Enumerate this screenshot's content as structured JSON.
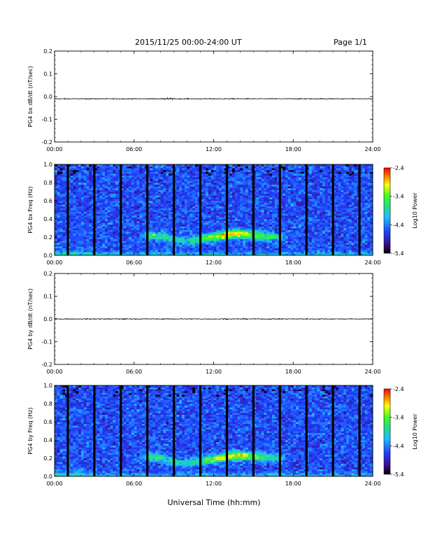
{
  "header": {
    "date_range": "2015/11/25  00:00-24:00 UT",
    "page": "Page 1/1"
  },
  "footer": {
    "xlabel": "Universal Time (hh:mm)"
  },
  "colors": {
    "trace": "#000000",
    "spectrogram_colormap": [
      "#000000",
      "#3a0a8a",
      "#2040ff",
      "#20c0ff",
      "#20e080",
      "#40ff20",
      "#ffff00",
      "#ff8000",
      "#ff0000"
    ]
  },
  "chart_data": [
    {
      "type": "line",
      "ylabel": "PG4 bx dB/dt (nT/sec)",
      "xlabel": "",
      "xlim": [
        "00:00",
        "24:00"
      ],
      "xticks": [
        "00:00",
        "06:00",
        "12:00",
        "18:00",
        "24:00"
      ],
      "ylim": [
        -0.2,
        0.2
      ],
      "yticks": [
        "0.2",
        "0.1",
        "0.0",
        "-0.1",
        "-0.2"
      ],
      "series": [
        {
          "x": [
            "00:00",
            "03:00",
            "06:00",
            "08:30",
            "09:00",
            "12:00",
            "15:00",
            "18:00",
            "21:00",
            "24:00"
          ],
          "y": [
            -0.01,
            -0.01,
            -0.01,
            -0.01,
            -0.01,
            -0.01,
            -0.01,
            -0.01,
            -0.01,
            -0.01
          ]
        }
      ]
    },
    {
      "type": "heatmap",
      "ylabel": "PG4 bx Freq (Hz)",
      "xlim": [
        "00:00",
        "24:00"
      ],
      "xticks": [
        "00:00",
        "06:00",
        "12:00",
        "18:00",
        "24:00"
      ],
      "ylim": [
        0.0,
        1.0
      ],
      "yticks": [
        "1.0",
        "0.8",
        "0.6",
        "0.4",
        "0.2",
        "0.0"
      ],
      "colorbar": {
        "label": "Log10 Power",
        "ticks": [
          "-2.4",
          "-3.4",
          "-4.4",
          "-5.4"
        ],
        "range": [
          -5.4,
          -2.4
        ]
      },
      "data_gaps_hours": [
        1.0,
        3.0,
        5.0,
        7.0,
        9.0,
        11.0,
        13.0,
        15.0,
        17.0,
        19.0,
        21.0,
        23.0
      ],
      "band_hours": [
        7,
        8,
        9,
        10,
        11,
        12,
        13,
        14,
        15,
        16,
        17
      ],
      "band_freq_hz": [
        0.22,
        0.22,
        0.18,
        0.16,
        0.18,
        0.2,
        0.23,
        0.24,
        0.22,
        0.21,
        0.2
      ],
      "band_peak_log10_power": [
        -3.8,
        -3.7,
        -3.9,
        -3.9,
        -3.7,
        -3.3,
        -2.8,
        -2.9,
        -3.4,
        -3.6,
        -3.9
      ],
      "background_log10_power": -4.6
    },
    {
      "type": "line",
      "ylabel": "PG4 by dB/dt (nT/sec)",
      "xlabel": "",
      "xlim": [
        "00:00",
        "24:00"
      ],
      "xticks": [
        "00:00",
        "06:00",
        "12:00",
        "18:00",
        "24:00"
      ],
      "ylim": [
        -0.2,
        0.2
      ],
      "yticks": [
        "0.2",
        "0.1",
        "0.0",
        "-0.1",
        "-0.2"
      ],
      "series": [
        {
          "x": [
            "00:00",
            "03:00",
            "06:00",
            "09:00",
            "12:00",
            "15:00",
            "18:00",
            "21:00",
            "24:00"
          ],
          "y": [
            0.0,
            0.0,
            0.0,
            0.0,
            0.0,
            0.0,
            0.0,
            0.0,
            0.0
          ]
        }
      ]
    },
    {
      "type": "heatmap",
      "ylabel": "PG4 by Freq (Hz)",
      "xlabel": "Universal Time (hh:mm)",
      "xlim": [
        "00:00",
        "24:00"
      ],
      "xticks": [
        "00:00",
        "06:00",
        "12:00",
        "18:00",
        "24:00"
      ],
      "ylim": [
        0.0,
        1.0
      ],
      "yticks": [
        "1.0",
        "0.8",
        "0.6",
        "0.4",
        "0.2",
        "0.0"
      ],
      "colorbar": {
        "label": "Log10 Power",
        "ticks": [
          "-2.4",
          "-3.4",
          "-4.4",
          "-5.4"
        ],
        "range": [
          -5.4,
          -2.4
        ]
      },
      "data_gaps_hours": [
        1.0,
        3.0,
        5.0,
        7.0,
        9.0,
        11.0,
        13.0,
        15.0,
        17.0,
        19.0,
        21.0,
        23.0
      ],
      "band_hours": [
        7,
        8,
        9,
        10,
        11,
        12,
        13,
        14,
        15,
        16,
        17
      ],
      "band_freq_hz": [
        0.22,
        0.21,
        0.16,
        0.15,
        0.17,
        0.19,
        0.22,
        0.23,
        0.22,
        0.21,
        0.2
      ],
      "band_peak_log10_power": [
        -3.8,
        -3.7,
        -3.9,
        -4.0,
        -3.7,
        -3.3,
        -2.9,
        -2.9,
        -3.4,
        -3.6,
        -3.9
      ],
      "background_log10_power": -4.6
    }
  ]
}
